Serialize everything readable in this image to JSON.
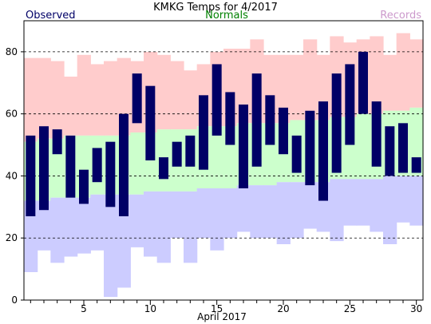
{
  "chart_data": {
    "type": "bar",
    "title": "KMKG Temps for 4/2017",
    "xlabel": "April 2017",
    "ylabel": "",
    "legend": {
      "observed": "Observed",
      "normals": "Normals",
      "records": "Records"
    },
    "colors": {
      "observed": "#000066",
      "normals": "#008000",
      "records": "#cc99cc",
      "record_high_fill": "#ffcccc",
      "normal_fill": "#ccffcc",
      "record_low_fill": "#ccccff",
      "grid": "#000000"
    },
    "ylim": [
      0,
      90
    ],
    "yticks": [
      0,
      20,
      40,
      60,
      80
    ],
    "xlim": [
      0.5,
      30.5
    ],
    "xticks": [
      5,
      10,
      15,
      20,
      25,
      30
    ],
    "grid": "dashed horizontal",
    "legend_placement": "top",
    "days": [
      1,
      2,
      3,
      4,
      5,
      6,
      7,
      8,
      9,
      10,
      11,
      12,
      13,
      14,
      15,
      16,
      17,
      18,
      19,
      20,
      21,
      22,
      23,
      24,
      25,
      26,
      27,
      28,
      29,
      30
    ],
    "record_high": [
      78,
      78,
      77,
      72,
      79,
      76,
      77,
      78,
      77,
      80,
      79,
      77,
      74,
      76,
      80,
      81,
      81,
      84,
      79,
      79,
      79,
      84,
      79,
      85,
      83,
      84,
      85,
      79,
      86,
      84
    ],
    "normal_high": [
      51,
      52,
      52,
      53,
      53,
      53,
      53,
      53,
      54,
      54,
      55,
      55,
      55,
      56,
      56,
      56,
      57,
      57,
      57,
      57,
      58,
      58,
      58,
      59,
      59,
      60,
      60,
      61,
      61,
      62
    ],
    "normal_low": [
      32,
      32,
      33,
      33,
      33,
      34,
      34,
      34,
      34,
      35,
      35,
      35,
      35,
      36,
      36,
      36,
      37,
      37,
      37,
      38,
      38,
      38,
      38,
      39,
      39,
      39,
      39,
      40,
      40,
      40
    ],
    "record_low": [
      9,
      16,
      12,
      14,
      15,
      16,
      1,
      4,
      17,
      14,
      12,
      20,
      12,
      20,
      16,
      20,
      22,
      20,
      20,
      18,
      20,
      23,
      22,
      19,
      24,
      24,
      22,
      18,
      25,
      24
    ],
    "observed_high": [
      53,
      56,
      55,
      53,
      42,
      49,
      51,
      60,
      73,
      69,
      46,
      51,
      53,
      66,
      76,
      67,
      63,
      73,
      66,
      62,
      53,
      61,
      64,
      73,
      76,
      80,
      64,
      56,
      57,
      46
    ],
    "observed_low": [
      27,
      29,
      47,
      33,
      31,
      38,
      30,
      27,
      57,
      45,
      39,
      43,
      43,
      42,
      53,
      50,
      36,
      43,
      50,
      47,
      41,
      37,
      32,
      41,
      50,
      60,
      43,
      40,
      41,
      41
    ]
  }
}
